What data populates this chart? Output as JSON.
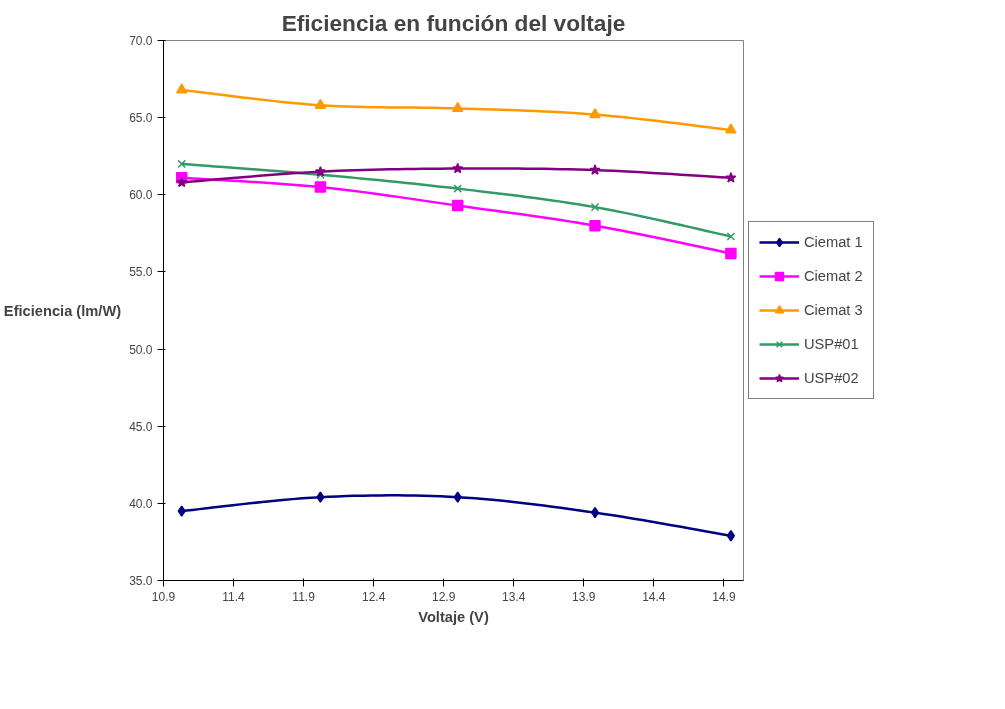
{
  "chart_data": {
    "type": "line",
    "title": "Eficiencia en función del voltaje",
    "xlabel": "Voltaje (V)",
    "ylabel": "Eficiencia (lm/W)",
    "x": [
      11.03,
      12.02,
      13.0,
      13.98,
      14.95
    ],
    "xlim": [
      10.9,
      15.04
    ],
    "xticks": [
      10.9,
      11.4,
      11.9,
      12.4,
      12.9,
      13.4,
      13.9,
      14.4,
      14.9
    ],
    "ylim": [
      35,
      70
    ],
    "yticks": [
      {
        "value": 35,
        "label": "35.0"
      },
      {
        "value": 40,
        "label": "40.0"
      },
      {
        "value": 45,
        "label": "45.0"
      },
      {
        "value": 50,
        "label": "50.0"
      },
      {
        "value": 55,
        "label": "55.0"
      },
      {
        "value": 60,
        "label": "60.0"
      },
      {
        "value": 65,
        "label": "65.0"
      },
      {
        "value": 70,
        "label": "70.0"
      }
    ],
    "grid": false,
    "legend": "right",
    "series": [
      {
        "name": "Ciemat 1",
        "color": "#000080",
        "marker": "diamond",
        "values": [
          39.5,
          40.4,
          40.4,
          39.4,
          37.9
        ]
      },
      {
        "name": "Ciemat 2",
        "color": "#ff00ff",
        "marker": "square",
        "values": [
          61.1,
          60.5,
          59.3,
          58.0,
          56.2
        ]
      },
      {
        "name": "Ciemat 3",
        "color": "#ff9900",
        "marker": "triangle",
        "values": [
          66.8,
          65.8,
          65.6,
          65.2,
          64.2
        ]
      },
      {
        "name": "USP#01",
        "color": "#339966",
        "marker": "cross",
        "values": [
          62.0,
          61.3,
          60.4,
          59.2,
          57.3
        ]
      },
      {
        "name": "USP#02",
        "color": "#800080",
        "marker": "star",
        "values": [
          60.8,
          61.5,
          61.7,
          61.6,
          61.1
        ]
      }
    ]
  }
}
